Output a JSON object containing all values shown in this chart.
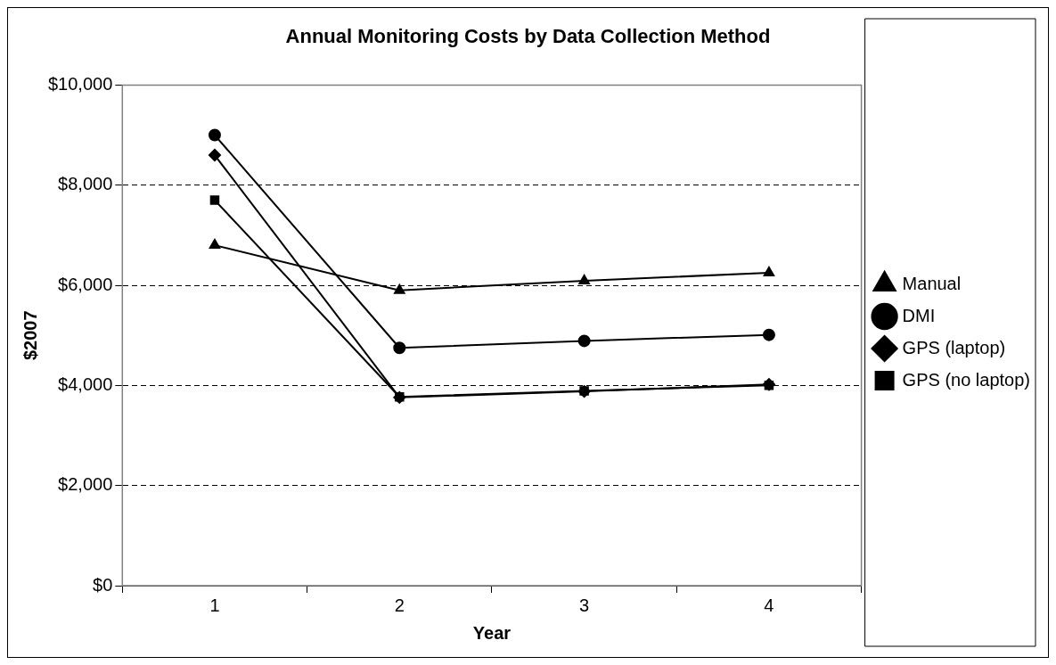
{
  "chart_data": {
    "type": "line",
    "title": "Annual Monitoring Costs by Data Collection Method",
    "xlabel": "Year",
    "ylabel": "$2007",
    "categories": [
      "1",
      "2",
      "3",
      "4"
    ],
    "series": [
      {
        "name": "Manual",
        "color": "#000000",
        "marker": "triangle",
        "values": [
          6800,
          5900,
          6090,
          6250
        ]
      },
      {
        "name": "DMI",
        "color": "#000000",
        "marker": "circle",
        "values": [
          9000,
          4750,
          4890,
          5010
        ]
      },
      {
        "name": "GPS (laptop)",
        "color": "#000000",
        "marker": "diamond",
        "values": [
          8600,
          3760,
          3880,
          4020
        ]
      },
      {
        "name": "GPS (no laptop)",
        "color": "#000000",
        "marker": "square",
        "values": [
          7700,
          3770,
          3890,
          4000
        ]
      }
    ],
    "ylim": [
      0,
      10000
    ],
    "yticks": [
      {
        "value": 0,
        "label": "$0"
      },
      {
        "value": 2000,
        "label": "$2,000"
      },
      {
        "value": 4000,
        "label": "$4,000"
      },
      {
        "value": 6000,
        "label": "$6,000"
      },
      {
        "value": 8000,
        "label": "$8,000"
      },
      {
        "value": 10000,
        "label": "$10,000"
      }
    ],
    "grid": "y",
    "legend": "right",
    "line_style": "solid"
  }
}
